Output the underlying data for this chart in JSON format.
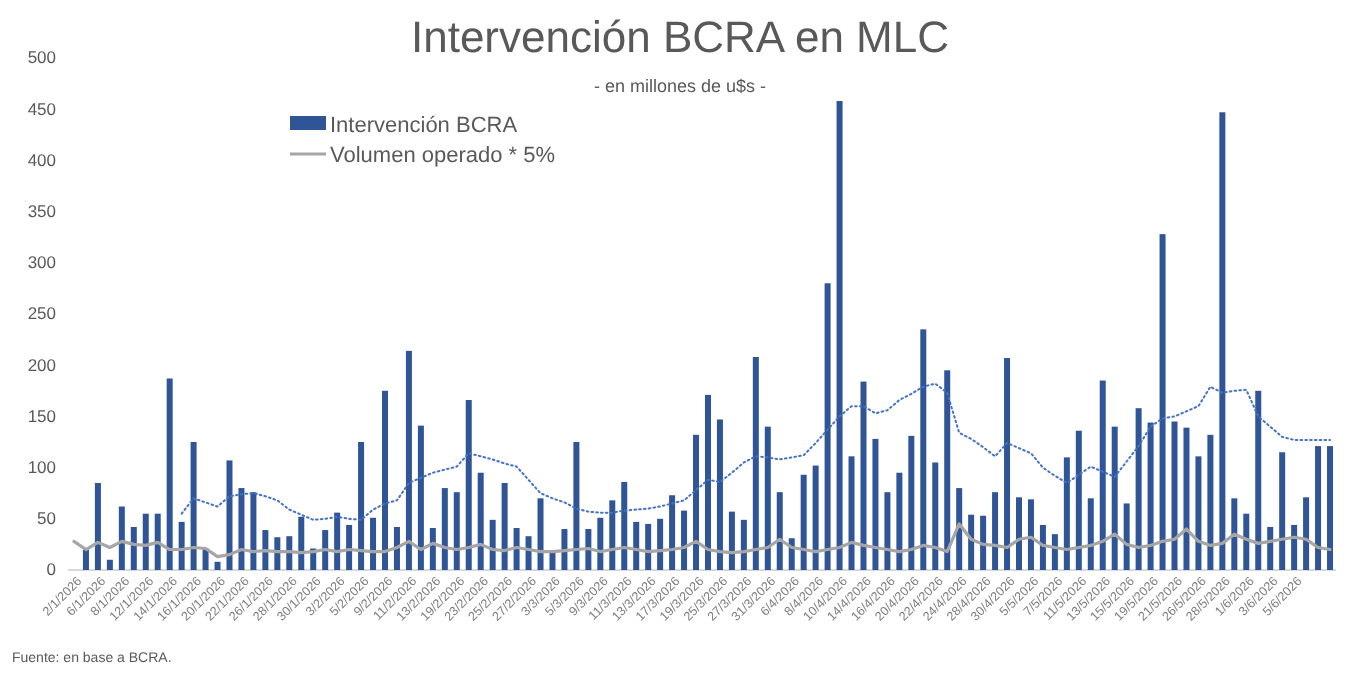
{
  "chart_data": {
    "type": "bar",
    "title": "Intervención BCRA en MLC",
    "subtitle": "- en millones de u$s -",
    "categories": [
      "2/1/2026",
      null,
      "6/1/2026",
      null,
      "8/1/2026",
      null,
      "12/1/2026",
      null,
      "14/1/2026",
      null,
      "16/1/2026",
      null,
      "20/1/2026",
      null,
      "22/1/2026",
      null,
      "26/1/2026",
      null,
      "28/1/2026",
      null,
      "30/1/2026",
      null,
      "3/2/2026",
      null,
      "5/2/2026",
      null,
      "9/2/2026",
      null,
      "11/2/2026",
      null,
      "13/2/2026",
      null,
      "19/2/2026",
      null,
      "23/2/2026",
      null,
      "25/2/2026",
      null,
      "27/2/2026",
      null,
      "3/3/2026",
      null,
      "5/3/2026",
      null,
      "9/3/2026",
      null,
      "11/3/2026",
      null,
      "13/3/2026",
      null,
      "17/3/2026",
      null,
      "19/3/2026",
      null,
      "25/3/2026",
      null,
      "27/3/2026",
      null,
      "31/3/2026",
      null,
      "6/4/2026",
      null,
      "8/4/2026",
      null,
      "10/4/2026",
      null,
      "14/4/2026",
      null,
      "16/4/2026",
      null,
      "20/4/2026",
      null,
      "22/4/2026",
      null,
      "24/4/2026",
      null,
      "28/4/2026",
      null,
      "30/4/2026",
      null,
      "5/5/2026",
      null,
      "7/5/2026",
      null,
      "11/5/2026",
      null,
      "13/5/2026",
      null,
      "15/5/2026",
      null,
      "19/5/2026",
      null,
      "21/5/2026",
      null,
      "26/5/2026",
      null,
      "28/5/2026",
      null,
      "1/6/2026",
      null,
      "3/6/2026",
      null,
      "5/6/2026",
      null,
      null,
      null
    ],
    "series": [
      {
        "name": "Intervención BCRA",
        "color": "#2f5597",
        "values": [
          null,
          20,
          85,
          10,
          62,
          42,
          55,
          55,
          187,
          47,
          125,
          21,
          8,
          107,
          80,
          76,
          39,
          32,
          33,
          52,
          21,
          39,
          56,
          44,
          125,
          51,
          175,
          42,
          214,
          141,
          41,
          80,
          76,
          166,
          95,
          49,
          85,
          41,
          33,
          70,
          18,
          40,
          125,
          40,
          51,
          68,
          86,
          47,
          45,
          50,
          73,
          58,
          132,
          171,
          147,
          57,
          49,
          208,
          140,
          76,
          31,
          93,
          102,
          280,
          458,
          111,
          184,
          128,
          76,
          95,
          131,
          235,
          105,
          195,
          80,
          54,
          53,
          76,
          207,
          71,
          69,
          44,
          35,
          110,
          136,
          70,
          185,
          140,
          65,
          158,
          144,
          328,
          145,
          139,
          111,
          132,
          447,
          70,
          55,
          175,
          42,
          115,
          44,
          71,
          121,
          121
        ]
      },
      {
        "name": "Volumen operado * 5%",
        "type": "line",
        "line_style": "solid",
        "color": "#a6a6a6",
        "values": [
          28,
          20,
          27,
          22,
          28,
          25,
          24,
          27,
          20,
          20,
          22,
          21,
          13,
          15,
          20,
          18,
          19,
          18,
          18,
          17,
          18,
          20,
          18,
          20,
          19,
          18,
          18,
          22,
          28,
          20,
          26,
          22,
          20,
          22,
          25,
          20,
          19,
          22,
          20,
          18,
          18,
          19,
          20,
          21,
          18,
          20,
          22,
          20,
          18,
          19,
          20,
          22,
          28,
          20,
          18,
          17,
          18,
          20,
          22,
          30,
          22,
          20,
          18,
          20,
          22,
          27,
          24,
          22,
          20,
          18,
          20,
          24,
          22,
          18,
          45,
          30,
          25,
          24,
          22,
          30,
          32,
          24,
          22,
          20,
          22,
          24,
          28,
          35,
          25,
          22,
          24,
          28,
          30,
          40,
          28,
          24,
          26,
          35,
          30,
          26,
          28,
          30,
          32,
          30,
          22,
          20
        ]
      },
      {
        "type": "line",
        "line_style": "dotted",
        "color": "#4472c4",
        "values": [
          null,
          null,
          null,
          null,
          null,
          null,
          null,
          null,
          null,
          55,
          70,
          66,
          62,
          72,
          74,
          75,
          72,
          68,
          59,
          54,
          49,
          50,
          52,
          50,
          49,
          59,
          65,
          68,
          85,
          90,
          95,
          98,
          101,
          114,
          111,
          108,
          104,
          101,
          88,
          75,
          70,
          66,
          60,
          57,
          56,
          56,
          58,
          59,
          60,
          62,
          65,
          68,
          78,
          88,
          86,
          95,
          105,
          111,
          110,
          108,
          110,
          112,
          124,
          137,
          150,
          160,
          160,
          153,
          156,
          166,
          172,
          179,
          182,
          173,
          134,
          128,
          120,
          111,
          124,
          119,
          114,
          100,
          92,
          85,
          93,
          101,
          96,
          91,
          106,
          121,
          140,
          148,
          150,
          155,
          160,
          179,
          173,
          175,
          176,
          150,
          140,
          130,
          127,
          127,
          127,
          127
        ]
      }
    ],
    "ylim": [
      0,
      500
    ],
    "yticks": [
      0,
      50,
      100,
      150,
      200,
      250,
      300,
      350,
      400,
      450,
      500
    ],
    "grid": false,
    "legend": "top left",
    "annotations": [
      "Fuente: en base a BCRA."
    ]
  }
}
